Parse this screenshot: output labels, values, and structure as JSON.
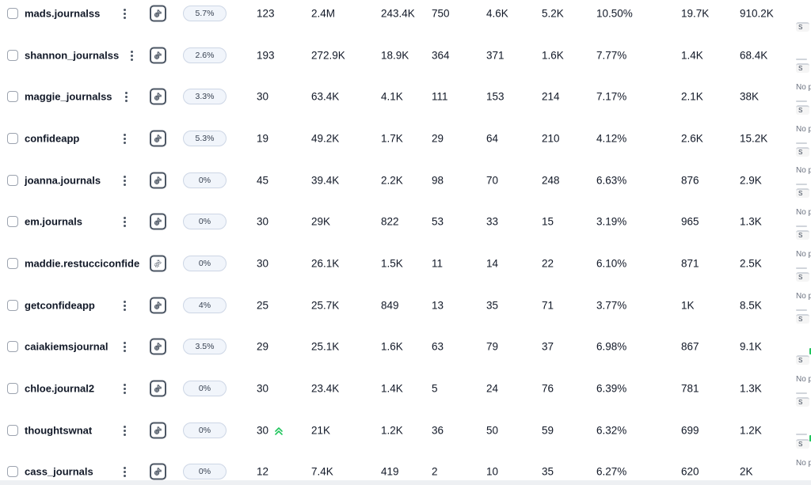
{
  "rows": [
    {
      "username": "mads.journalss",
      "platform_icon": "tiktok-icon",
      "badge": "5.7%",
      "posts": "123",
      "followers": "2.4M",
      "avg_likes": "243.4K",
      "c1": "750",
      "c2": "4.6K",
      "c3": "5.2K",
      "er": "10.50%",
      "c5": "19.7K",
      "c6": "910.2K",
      "trend": false
    },
    {
      "username": "shannon_journalss",
      "platform_icon": "tiktok-icon",
      "badge": "2.6%",
      "posts": "193",
      "followers": "272.9K",
      "avg_likes": "18.9K",
      "c1": "364",
      "c2": "371",
      "c3": "1.6K",
      "er": "7.77%",
      "c5": "1.4K",
      "c6": "68.4K",
      "trend": false
    },
    {
      "username": "maggie_journalss",
      "platform_icon": "tiktok-icon",
      "badge": "3.3%",
      "posts": "30",
      "followers": "63.4K",
      "avg_likes": "4.1K",
      "c1": "111",
      "c2": "153",
      "c3": "214",
      "er": "7.17%",
      "c5": "2.1K",
      "c6": "38K",
      "trend": false
    },
    {
      "username": "confideapp",
      "platform_icon": "tiktok-icon",
      "badge": "5.3%",
      "posts": "19",
      "followers": "49.2K",
      "avg_likes": "1.7K",
      "c1": "29",
      "c2": "64",
      "c3": "210",
      "er": "4.12%",
      "c5": "2.6K",
      "c6": "15.2K",
      "trend": false
    },
    {
      "username": "joanna.journals",
      "platform_icon": "tiktok-icon",
      "badge": "0%",
      "posts": "45",
      "followers": "39.4K",
      "avg_likes": "2.2K",
      "c1": "98",
      "c2": "70",
      "c3": "248",
      "er": "6.63%",
      "c5": "876",
      "c6": "2.9K",
      "trend": false
    },
    {
      "username": "em.journals",
      "platform_icon": "tiktok-icon",
      "badge": "0%",
      "posts": "30",
      "followers": "29K",
      "avg_likes": "822",
      "c1": "53",
      "c2": "33",
      "c3": "15",
      "er": "3.19%",
      "c5": "965",
      "c6": "1.3K",
      "trend": false
    },
    {
      "username": "maddie.restucciconfide",
      "platform_icon": "tiktok-sparkle-icon",
      "badge": "0%",
      "posts": "30",
      "followers": "26.1K",
      "avg_likes": "1.5K",
      "c1": "11",
      "c2": "14",
      "c3": "22",
      "er": "6.10%",
      "c5": "871",
      "c6": "2.5K",
      "trend": false
    },
    {
      "username": "getconfideapp",
      "platform_icon": "tiktok-icon",
      "badge": "4%",
      "posts": "25",
      "followers": "25.7K",
      "avg_likes": "849",
      "c1": "13",
      "c2": "35",
      "c3": "71",
      "er": "3.77%",
      "c5": "1K",
      "c6": "8.5K",
      "trend": false
    },
    {
      "username": "caiakiemsjournal",
      "platform_icon": "tiktok-icon",
      "badge": "3.5%",
      "posts": "29",
      "followers": "25.1K",
      "avg_likes": "1.6K",
      "c1": "63",
      "c2": "79",
      "c3": "37",
      "er": "6.98%",
      "c5": "867",
      "c6": "9.1K",
      "trend": false
    },
    {
      "username": "chloe.journal2",
      "platform_icon": "tiktok-icon",
      "badge": "0%",
      "posts": "30",
      "followers": "23.4K",
      "avg_likes": "1.4K",
      "c1": "5",
      "c2": "24",
      "c3": "76",
      "er": "6.39%",
      "c5": "781",
      "c6": "1.3K",
      "trend": false
    },
    {
      "username": "thoughtswnat",
      "platform_icon": "tiktok-icon",
      "badge": "0%",
      "posts": "30",
      "followers": "21K",
      "avg_likes": "1.2K",
      "c1": "36",
      "c2": "50",
      "c3": "59",
      "er": "6.32%",
      "c5": "699",
      "c6": "1.2K",
      "trend": true
    },
    {
      "username": "cass_journals",
      "platform_icon": "tiktok-icon",
      "badge": "0%",
      "posts": "12",
      "followers": "7.4K",
      "avg_likes": "419",
      "c1": "2",
      "c2": "10",
      "c3": "35",
      "er": "6.27%",
      "c5": "620",
      "c6": "2K",
      "trend": false
    }
  ],
  "right_column": {
    "chip_label": "S",
    "status_label": "No p"
  },
  "colors": {
    "badge_bg": "#f1f5fb",
    "badge_border": "#cdd6e5",
    "trend_green": "#22c55e",
    "icon_gray": "#4b5563"
  }
}
